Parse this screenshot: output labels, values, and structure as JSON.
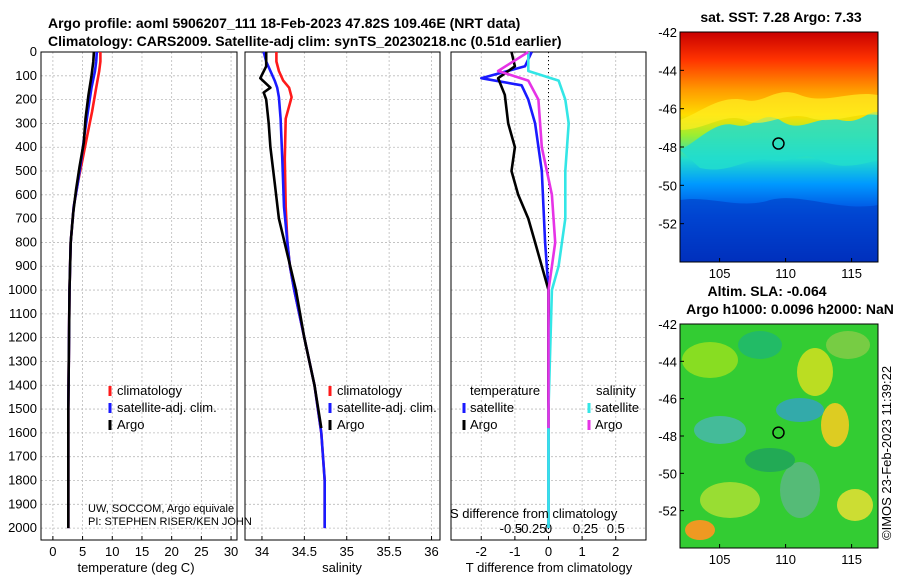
{
  "header": {
    "line1": "Argo profile: aoml 5906207_111 18-Feb-2023 47.82S 109.46E (NRT data)",
    "line2": "Climatology: CARS2009. Satellite-adj clim: synTS_20230218.nc (0.51d earlier)"
  },
  "credit": {
    "line1": "UW, SOCCOM, Argo equivale",
    "line2": "PI: STEPHEN RISER/KEN JOHN"
  },
  "watermark": "©IMOS 23-Feb-2023 11:39:22",
  "colors": {
    "climatology": "#ff1a1a",
    "satellite": "#1a1aff",
    "argo": "#000000",
    "sat_salinity": "#33e6e6",
    "argo_salinity": "#e633e6"
  },
  "chart_data": [
    {
      "type": "line",
      "id": "temperature",
      "xlabel": "temperature (deg C)",
      "ylabel": "",
      "xlim": [
        -2,
        31
      ],
      "ylim": [
        2050,
        0
      ],
      "xticks": [
        0,
        5,
        10,
        15,
        20,
        25,
        30
      ],
      "yticks": [
        0,
        100,
        200,
        300,
        400,
        500,
        600,
        700,
        800,
        900,
        1000,
        1100,
        1200,
        1300,
        1400,
        1500,
        1600,
        1700,
        1800,
        1900,
        2000
      ],
      "grid": true,
      "legend": [
        "climatology",
        "satellite-adj. clim.",
        "Argo"
      ],
      "series": [
        {
          "name": "climatology",
          "color": "#ff1a1a",
          "x": [
            8.0,
            8.0,
            7.8,
            7.3,
            6.6,
            5.8,
            5.0,
            4.2,
            3.5,
            3.0,
            2.8,
            2.6,
            2.6
          ],
          "y": [
            0,
            40,
            80,
            150,
            250,
            350,
            450,
            550,
            650,
            800,
            1000,
            1500,
            2000
          ]
        },
        {
          "name": "satellite-adj. clim.",
          "color": "#1a1aff",
          "x": [
            7.4,
            7.3,
            7.1,
            6.5,
            5.9,
            5.3,
            4.8,
            4.2,
            3.5,
            3.0,
            2.8,
            2.6,
            2.6
          ],
          "y": [
            0,
            40,
            80,
            150,
            250,
            350,
            450,
            550,
            650,
            800,
            1000,
            1500,
            2000
          ]
        },
        {
          "name": "Argo",
          "color": "#000000",
          "x": [
            6.9,
            6.8,
            6.5,
            6.0,
            5.5,
            5.2,
            4.5,
            3.9,
            3.4,
            3.0,
            2.8,
            2.6,
            2.6
          ],
          "y": [
            0,
            40,
            100,
            180,
            280,
            380,
            480,
            580,
            680,
            800,
            1000,
            1500,
            2000
          ]
        }
      ]
    },
    {
      "type": "line",
      "id": "salinity",
      "xlabel": "salinity",
      "xlim": [
        33.8,
        36.1
      ],
      "ylim": [
        2050,
        0
      ],
      "xticks": [
        34,
        34.5,
        35,
        35.5,
        36
      ],
      "xticklabels": [
        "34",
        "34.5",
        "35",
        "35.5",
        "36"
      ],
      "grid": true,
      "legend": [
        "climatology",
        "satellite-adj. clim.",
        "Argo"
      ],
      "series": [
        {
          "name": "climatology",
          "color": "#ff1a1a",
          "x": [
            34.17,
            34.17,
            34.2,
            34.25,
            34.32,
            34.35,
            34.28,
            34.27,
            34.28,
            34.3,
            34.33,
            34.38,
            34.5,
            34.62,
            34.7,
            34.74,
            34.74
          ],
          "y": [
            0,
            40,
            80,
            120,
            150,
            190,
            280,
            450,
            650,
            800,
            900,
            1000,
            1200,
            1400,
            1600,
            1800,
            2000
          ]
        },
        {
          "name": "satellite-adj. clim.",
          "color": "#1a1aff",
          "x": [
            34.02,
            34.05,
            34.1,
            34.15,
            34.18,
            34.2,
            34.22,
            34.24,
            34.26,
            34.3,
            34.33,
            34.38,
            34.5,
            34.62,
            34.7,
            34.74,
            34.74
          ],
          "y": [
            0,
            40,
            80,
            120,
            150,
            190,
            280,
            450,
            650,
            800,
            900,
            1000,
            1200,
            1400,
            1600,
            1800,
            2000
          ]
        },
        {
          "name": "Argo",
          "color": "#000000",
          "x": [
            34.05,
            34.05,
            33.98,
            34.1,
            34.02,
            34.05,
            34.08,
            34.1,
            34.15,
            34.2,
            34.3,
            34.4,
            34.5,
            34.62,
            34.7
          ],
          "y": [
            0,
            60,
            110,
            150,
            170,
            200,
            300,
            400,
            550,
            700,
            850,
            1000,
            1200,
            1400,
            1580
          ]
        }
      ]
    },
    {
      "type": "line",
      "id": "difference",
      "xlabel": "T difference from climatology",
      "xlabel2": "S difference from climatology",
      "xlim": [
        -2.9,
        2.9
      ],
      "ylim": [
        2050,
        0
      ],
      "xticks": [
        -2,
        -1,
        0,
        1,
        2
      ],
      "xticks_s": [
        "-0.5",
        "-0.25",
        "0",
        "0.25",
        "0.5"
      ],
      "grid": true,
      "legend_t_title": "temperature",
      "legend_s_title": "salinity",
      "legend_t": [
        "satellite",
        "Argo"
      ],
      "legend_s": [
        "satellite",
        "Argo"
      ],
      "series": [
        {
          "name": "T satellite",
          "color": "#1a1aff",
          "x": [
            -0.5,
            -0.7,
            -2.0,
            -0.8,
            -0.6,
            -0.4,
            -0.2,
            -0.1,
            0,
            0,
            0
          ],
          "y": [
            0,
            60,
            110,
            140,
            200,
            300,
            500,
            800,
            1000,
            1500,
            2000
          ]
        },
        {
          "name": "T Argo",
          "color": "#000000",
          "x": [
            -1.1,
            -1.0,
            -1.5,
            -1.3,
            -1.2,
            -1.0,
            -1.1,
            -0.9,
            -0.6,
            -0.4,
            -0.2,
            0,
            0
          ],
          "y": [
            0,
            60,
            110,
            180,
            300,
            400,
            500,
            600,
            700,
            800,
            900,
            1000,
            1580
          ]
        },
        {
          "name": "S satellite",
          "color": "#33e6e6",
          "x": [
            -0.6,
            -0.6,
            0.3,
            0.5,
            0.6,
            0.5,
            0.5,
            0.3,
            0.1,
            0,
            0
          ],
          "y": [
            0,
            80,
            120,
            200,
            300,
            500,
            700,
            900,
            1000,
            1500,
            2000
          ]
        },
        {
          "name": "S Argo",
          "color": "#e633e6",
          "x": [
            -0.6,
            -1.5,
            -0.6,
            -0.3,
            -0.2,
            0.1,
            0.2,
            0.1,
            0,
            0
          ],
          "y": [
            0,
            80,
            120,
            200,
            400,
            600,
            800,
            900,
            1000,
            1580
          ]
        }
      ]
    },
    {
      "type": "heatmap",
      "id": "sst-map",
      "title": "sat. SST: 7.28 Argo: 7.33",
      "xticks": [
        105,
        110,
        115
      ],
      "yticks": [
        -42,
        -44,
        -46,
        -48,
        -50,
        -52
      ],
      "xlim": [
        102,
        117
      ],
      "ylim": [
        -54,
        -42
      ],
      "marker": [
        109.46,
        -47.82
      ]
    },
    {
      "type": "heatmap",
      "id": "sla-map",
      "title": "Altim. SLA: -0.064",
      "title2": "Argo h1000: 0.0096 h2000: NaN",
      "xticks": [
        105,
        110,
        115
      ],
      "yticks": [
        -42,
        -44,
        -46,
        -48,
        -50,
        -52
      ],
      "xlim": [
        102,
        117
      ],
      "ylim": [
        -54,
        -42
      ],
      "marker": [
        109.46,
        -47.82
      ]
    }
  ]
}
